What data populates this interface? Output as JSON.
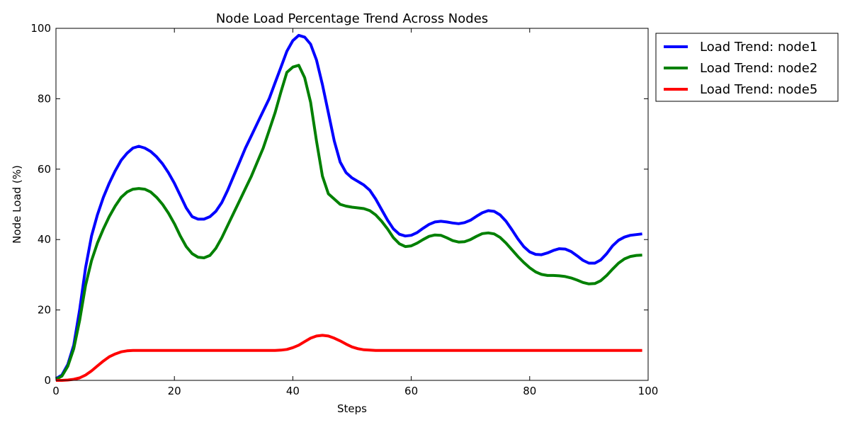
{
  "chart_data": {
    "type": "line",
    "title": "Node Load Percentage Trend Across Nodes",
    "xlabel": "Steps",
    "ylabel": "Node Load (%)",
    "xlim": [
      0,
      100
    ],
    "ylim": [
      0,
      100
    ],
    "xticks": [
      0,
      20,
      40,
      60,
      80,
      100
    ],
    "yticks": [
      0,
      20,
      40,
      60,
      80,
      100
    ],
    "grid": false,
    "legend_position": "outside-top-right",
    "series": [
      {
        "name": "Load Trend: node1",
        "color": "#0000ff",
        "x": [
          0,
          1,
          2,
          3,
          4,
          5,
          6,
          7,
          8,
          9,
          10,
          11,
          12,
          13,
          14,
          15,
          16,
          17,
          18,
          19,
          20,
          21,
          22,
          23,
          24,
          25,
          26,
          27,
          28,
          29,
          30,
          31,
          32,
          33,
          34,
          35,
          36,
          37,
          38,
          39,
          40,
          41,
          42,
          43,
          44,
          45,
          46,
          47,
          48,
          49,
          50,
          51,
          52,
          53,
          54,
          55,
          56,
          57,
          58,
          59,
          60,
          61,
          62,
          63,
          64,
          65,
          66,
          67,
          68,
          69,
          70,
          71,
          72,
          73,
          74,
          75,
          76,
          77,
          78,
          79,
          80,
          81,
          82,
          83,
          84,
          85,
          86,
          87,
          88,
          89,
          90,
          91,
          92,
          93,
          94,
          95,
          96,
          97,
          98,
          99
        ],
        "values": [
          0.5,
          1.5,
          4.5,
          10,
          20,
          32,
          41,
          47,
          52,
          56,
          59.5,
          62.5,
          64.5,
          66,
          66.5,
          66,
          65,
          63.5,
          61.5,
          59,
          56,
          52.5,
          49,
          46.5,
          45.8,
          45.8,
          46.5,
          48,
          50.5,
          54,
          58,
          62,
          66,
          69.5,
          73,
          76.5,
          80,
          84.5,
          89,
          93.5,
          96.5,
          98,
          97.5,
          95.5,
          91,
          84,
          76,
          68,
          62,
          59,
          57.5,
          56.5,
          55.5,
          54,
          51.5,
          48.5,
          45.5,
          43,
          41.5,
          41,
          41.2,
          42,
          43.2,
          44.3,
          45,
          45.2,
          45,
          44.7,
          44.5,
          44.8,
          45.5,
          46.6,
          47.6,
          48.2,
          48,
          47,
          45.2,
          42.8,
          40.2,
          38,
          36.5,
          35.8,
          35.7,
          36.2,
          36.9,
          37.4,
          37.3,
          36.6,
          35.4,
          34.1,
          33.3,
          33.3,
          34.2,
          36,
          38.2,
          39.8,
          40.7,
          41.2,
          41.4,
          41.6
        ]
      },
      {
        "name": "Load Trend: node2",
        "color": "#008000",
        "x": [
          0,
          1,
          2,
          3,
          4,
          5,
          6,
          7,
          8,
          9,
          10,
          11,
          12,
          13,
          14,
          15,
          16,
          17,
          18,
          19,
          20,
          21,
          22,
          23,
          24,
          25,
          26,
          27,
          28,
          29,
          30,
          31,
          32,
          33,
          34,
          35,
          36,
          37,
          38,
          39,
          40,
          41,
          42,
          43,
          44,
          45,
          46,
          47,
          48,
          49,
          50,
          51,
          52,
          53,
          54,
          55,
          56,
          57,
          58,
          59,
          60,
          61,
          62,
          63,
          64,
          65,
          66,
          67,
          68,
          69,
          70,
          71,
          72,
          73,
          74,
          75,
          76,
          77,
          78,
          79,
          80,
          81,
          82,
          83,
          84,
          85,
          86,
          87,
          88,
          89,
          90,
          91,
          92,
          93,
          94,
          95,
          96,
          97,
          98,
          99
        ],
        "values": [
          0.3,
          1.2,
          4,
          9,
          17,
          27,
          34,
          39,
          43,
          46.5,
          49.5,
          52,
          53.5,
          54.3,
          54.5,
          54.3,
          53.5,
          52,
          50,
          47.5,
          44.5,
          41,
          38,
          36,
          35,
          34.8,
          35.5,
          37.5,
          40.5,
          44,
          47.5,
          51,
          54.5,
          58,
          62,
          66,
          71,
          76,
          82,
          87.5,
          89,
          89.5,
          86,
          79,
          68,
          58,
          53,
          51.5,
          50,
          49.5,
          49.2,
          49,
          48.8,
          48.2,
          47,
          45.2,
          43,
          40.5,
          38.8,
          38,
          38.2,
          39,
          40,
          40.9,
          41.3,
          41.2,
          40.5,
          39.7,
          39.3,
          39.4,
          40,
          40.9,
          41.7,
          41.9,
          41.6,
          40.6,
          39,
          37.1,
          35.2,
          33.5,
          32,
          30.8,
          30.1,
          29.8,
          29.8,
          29.7,
          29.5,
          29.1,
          28.5,
          27.8,
          27.4,
          27.5,
          28.3,
          29.8,
          31.6,
          33.3,
          34.5,
          35.2,
          35.5,
          35.6
        ]
      },
      {
        "name": "Load Trend: node5",
        "color": "#ff0000",
        "x": [
          0,
          1,
          2,
          3,
          4,
          5,
          6,
          7,
          8,
          9,
          10,
          11,
          12,
          13,
          14,
          15,
          16,
          17,
          18,
          19,
          20,
          21,
          22,
          23,
          24,
          25,
          26,
          27,
          28,
          29,
          30,
          31,
          32,
          33,
          34,
          35,
          36,
          37,
          38,
          39,
          40,
          41,
          42,
          43,
          44,
          45,
          46,
          47,
          48,
          49,
          50,
          51,
          52,
          53,
          54,
          55,
          56,
          57,
          58,
          59,
          60,
          61,
          62,
          63,
          64,
          65,
          66,
          67,
          68,
          69,
          70,
          71,
          72,
          73,
          74,
          75,
          76,
          77,
          78,
          79,
          80,
          81,
          82,
          83,
          84,
          85,
          86,
          87,
          88,
          89,
          90,
          91,
          92,
          93,
          94,
          95,
          96,
          97,
          98,
          99
        ],
        "values": [
          0,
          0,
          0.1,
          0.3,
          0.7,
          1.5,
          2.7,
          4.1,
          5.5,
          6.7,
          7.5,
          8.1,
          8.4,
          8.5,
          8.5,
          8.5,
          8.5,
          8.5,
          8.5,
          8.5,
          8.5,
          8.5,
          8.5,
          8.5,
          8.5,
          8.5,
          8.5,
          8.5,
          8.5,
          8.5,
          8.5,
          8.5,
          8.5,
          8.5,
          8.5,
          8.5,
          8.5,
          8.5,
          8.6,
          8.8,
          9.3,
          10,
          11,
          12,
          12.6,
          12.8,
          12.6,
          12,
          11.2,
          10.3,
          9.5,
          9,
          8.7,
          8.6,
          8.5,
          8.5,
          8.5,
          8.5,
          8.5,
          8.5,
          8.5,
          8.5,
          8.5,
          8.5,
          8.5,
          8.5,
          8.5,
          8.5,
          8.5,
          8.5,
          8.5,
          8.5,
          8.5,
          8.5,
          8.5,
          8.5,
          8.5,
          8.5,
          8.5,
          8.5,
          8.5,
          8.5,
          8.5,
          8.5,
          8.5,
          8.5,
          8.5,
          8.5,
          8.5,
          8.5,
          8.5,
          8.5,
          8.5,
          8.5,
          8.5,
          8.5,
          8.5,
          8.5,
          8.5,
          8.5
        ]
      }
    ]
  }
}
